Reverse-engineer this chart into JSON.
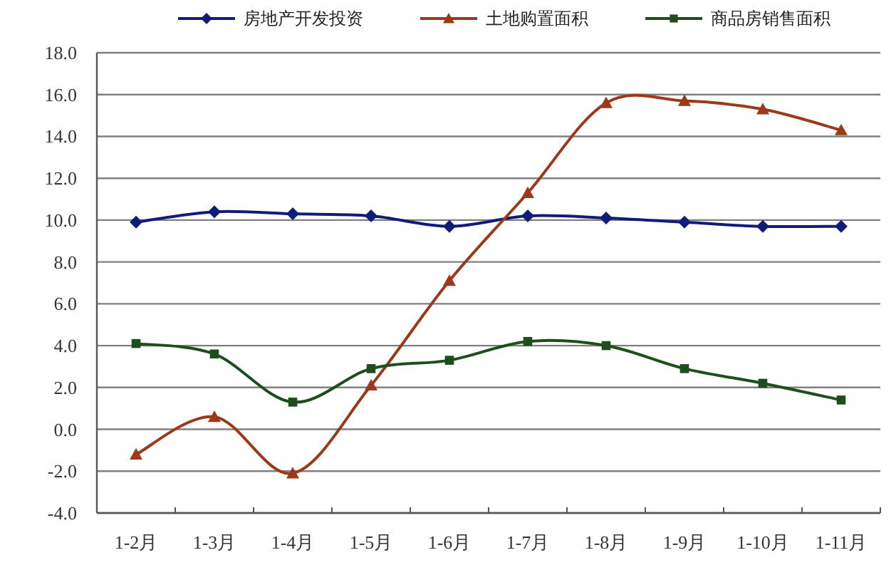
{
  "chart_data": {
    "type": "line",
    "categories": [
      "1-2月",
      "1-3月",
      "1-4月",
      "1-5月",
      "1-6月",
      "1-7月",
      "1-8月",
      "1-9月",
      "1-10月",
      "1-11月"
    ],
    "series": [
      {
        "name": "房地产开发投资",
        "color": "#101c78",
        "marker": "diamond",
        "values": [
          9.9,
          10.4,
          10.3,
          10.2,
          9.7,
          10.2,
          10.1,
          9.9,
          9.7,
          9.7
        ]
      },
      {
        "name": "土地购置面积",
        "color": "#9a3a1a",
        "marker": "triangle",
        "values": [
          -1.2,
          0.6,
          -2.1,
          2.1,
          7.1,
          11.3,
          15.6,
          15.7,
          15.3,
          14.3
        ]
      },
      {
        "name": "商品房销售面积",
        "color": "#1e4d1e",
        "marker": "square",
        "values": [
          4.1,
          3.6,
          1.3,
          2.9,
          3.3,
          4.2,
          4.0,
          2.9,
          2.2,
          1.4
        ]
      }
    ],
    "ylim": [
      -4,
      18
    ],
    "yticks": [
      {
        "value": -4,
        "label": "-4.0"
      },
      {
        "value": -2,
        "label": "-2.0"
      },
      {
        "value": 0,
        "label": "0.0"
      },
      {
        "value": 2,
        "label": "2.0"
      },
      {
        "value": 4,
        "label": "4.0"
      },
      {
        "value": 6,
        "label": "6.0"
      },
      {
        "value": 8,
        "label": "8.0"
      },
      {
        "value": 10,
        "label": "10.0"
      },
      {
        "value": 12,
        "label": "12.0"
      },
      {
        "value": 14,
        "label": "14.0"
      },
      {
        "value": 16,
        "label": "16.0"
      },
      {
        "value": 18,
        "label": "18.0"
      }
    ],
    "grid": "y",
    "legend": "top"
  }
}
